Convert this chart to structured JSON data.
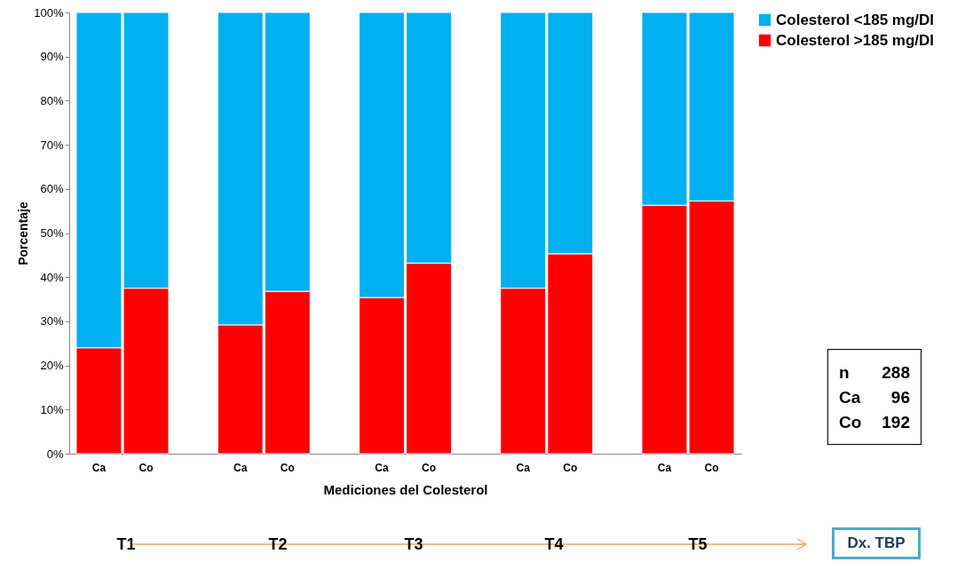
{
  "chart_data": {
    "type": "bar",
    "stacked": true,
    "xlabel": "Mediciones del Colesterol",
    "ylabel": "Porcentaje",
    "categories": [
      "Ca",
      "Co",
      null,
      "Ca",
      "Co",
      null,
      "Ca",
      "Co",
      null,
      "Ca",
      "Co",
      null,
      "Ca",
      "Co"
    ],
    "series": [
      {
        "name": "Colesterol >185 mg/Dl",
        "color": "#ff0000",
        "values": [
          24,
          37.5,
          null,
          29.2,
          36.8,
          null,
          35.4,
          43.2,
          null,
          37.5,
          45.3,
          null,
          56.3,
          57.3
        ]
      },
      {
        "name": "Colesterol <185 mg/Dl",
        "color": "#00b0f0",
        "values": [
          76,
          62.5,
          null,
          70.8,
          63.2,
          null,
          64.6,
          56.8,
          null,
          62.5,
          54.7,
          null,
          43.7,
          42.7
        ]
      }
    ],
    "ylim": [
      0,
      100
    ],
    "yticks": [
      {
        "value": 0,
        "label": "0%"
      },
      {
        "value": 10,
        "label": "10%"
      },
      {
        "value": 20,
        "label": "20%"
      },
      {
        "value": 30,
        "label": "30%"
      },
      {
        "value": 40,
        "label": "40%"
      },
      {
        "value": 50,
        "label": "50%"
      },
      {
        "value": 60,
        "label": "60%"
      },
      {
        "value": 70,
        "label": "70%"
      },
      {
        "value": 80,
        "label": "80%"
      },
      {
        "value": 90,
        "label": "90%"
      },
      {
        "value": 100,
        "label": "100%"
      }
    ],
    "legend": "right",
    "annotations": [
      "n",
      "288",
      "Ca",
      "96",
      "Co",
      "192",
      "T1",
      "T2",
      "T3",
      "T4",
      "T5",
      "Dx. TBP"
    ]
  }
}
